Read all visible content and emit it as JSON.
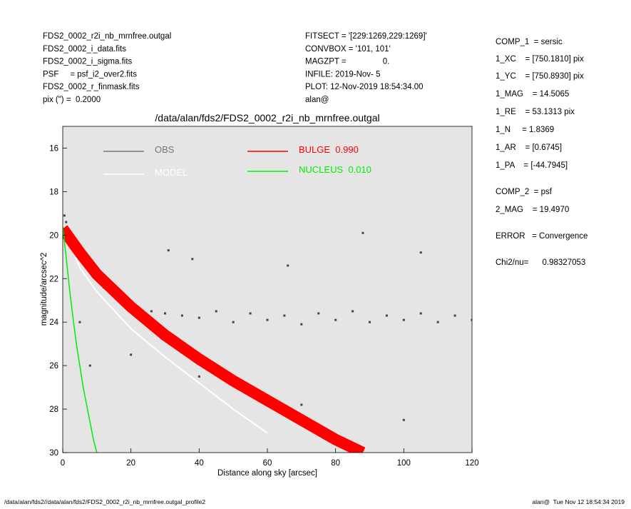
{
  "info": {
    "left": [
      "FDS2_0002_r2i_nb_mrnfree.outgal",
      "FDS2_0002_i_data.fits",
      "FDS2_0002_i_sigma.fits",
      "PSF     = psf_i2_over2.fits",
      "FDS2_0002_r_finmask.fits",
      "pix (\") =  0.2000"
    ],
    "middle": [
      "FITSECT = '[229:1269,229:1269]'",
      "CONVBOX = '101, 101'",
      "MAGZPT =                0.",
      "INFILE: 2019-Nov- 5",
      "PLOT: 12-Nov-2019 18:54:34.00",
      "alan@"
    ],
    "right": [
      "COMP_1  = sersic",
      "1_XC    = [750.1810] pix",
      "1_YC    = [750.8930] pix",
      "1_MAG    = 14.5065",
      "1_RE    = 53.1313 pix",
      "1_N     = 1.8369",
      "1_AR    = [0.6745]",
      "1_PA    = [-44.7945]",
      "COMP_2  = psf",
      "2_MAG    = 19.4970",
      "ERROR   = Convergence",
      "Chi2/nu=      0.98327053"
    ],
    "footer_left": "/data/alan/fds2//data/alan/fds2/FDS2_0002_r2i_nb_mrnfree.outgal_profile2",
    "footer_right": "alan@  Tue Nov 12 18:54:34 2019"
  },
  "chart_data": {
    "type": "line",
    "title": "/data/alan/fds2/FDS2_0002_r2i_nb_mrnfree.outgal",
    "x_label": "Distance along sky [arcsec]",
    "y_label": "magnitude/arcsec^2",
    "xlim": [
      0,
      120
    ],
    "xticks": [
      0,
      20,
      40,
      60,
      80,
      100,
      120
    ],
    "ylim": [
      30,
      15
    ],
    "yticks": [
      16,
      18,
      20,
      22,
      24,
      26,
      28,
      30
    ],
    "background": "#e5e5e5",
    "series": [
      {
        "name": "OBS",
        "color": "#444444",
        "legend_color": "#777777",
        "mode": "points",
        "x": [
          0.5,
          1,
          2,
          3,
          4,
          6,
          8,
          10,
          12,
          15,
          18,
          22,
          26,
          30,
          31,
          35,
          38,
          40,
          45,
          50,
          55,
          60,
          66,
          65,
          70,
          75,
          80,
          85,
          88,
          90,
          95,
          100,
          105,
          105,
          110,
          115,
          120,
          40,
          70,
          100,
          20,
          5,
          8
        ],
        "values": [
          19.1,
          19.4,
          19.9,
          20.3,
          20.6,
          21.1,
          21.6,
          22,
          22.4,
          22.8,
          23.1,
          23.3,
          23.5,
          23.6,
          20.7,
          23.7,
          21.1,
          23.8,
          23.5,
          24,
          23.6,
          23.9,
          21.4,
          23.7,
          24.1,
          23.6,
          23.9,
          23.5,
          19.9,
          24,
          23.7,
          23.9,
          20.8,
          23.6,
          24,
          23.7,
          23.9,
          26.5,
          27.8,
          28.5,
          25.5,
          24,
          26
        ]
      },
      {
        "name": "MODEL",
        "color": "#ffffff",
        "mode": "line",
        "width": 2,
        "x": [
          0,
          5,
          10,
          20,
          30,
          40,
          50,
          60
        ],
        "values": [
          19.5,
          21.5,
          22.6,
          24.3,
          25.6,
          26.8,
          28,
          29.1
        ]
      },
      {
        "name": "BULGE  0.990",
        "color": "#ff0000",
        "mode": "line",
        "width": 16,
        "x": [
          0,
          5,
          10,
          20,
          30,
          40,
          50,
          60,
          70,
          80,
          88
        ],
        "values": [
          19.7,
          20.8,
          21.8,
          23.3,
          24.6,
          25.7,
          26.7,
          27.6,
          28.5,
          29.4,
          30
        ]
      },
      {
        "name": "NUCLEUS  0.010",
        "color": "#00ee00",
        "mode": "line",
        "width": 1.5,
        "x": [
          0,
          1,
          2,
          3,
          4,
          5,
          6,
          7,
          8,
          9,
          10
        ],
        "values": [
          19.6,
          21,
          22.5,
          23.8,
          25,
          26,
          27,
          27.8,
          28.6,
          29.4,
          30
        ]
      }
    ]
  }
}
